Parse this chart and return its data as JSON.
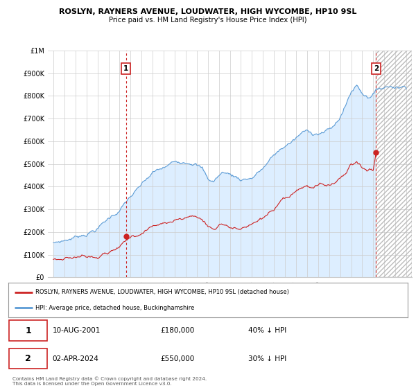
{
  "title": "ROSLYN, RAYNERS AVENUE, LOUDWATER, HIGH WYCOMBE, HP10 9SL",
  "subtitle": "Price paid vs. HM Land Registry's House Price Index (HPI)",
  "ylim": [
    0,
    1000000
  ],
  "yticks": [
    0,
    100000,
    200000,
    300000,
    400000,
    500000,
    600000,
    700000,
    800000,
    900000,
    1000000
  ],
  "ytick_labels": [
    "£0",
    "£100K",
    "£200K",
    "£300K",
    "£400K",
    "£500K",
    "£600K",
    "£700K",
    "£800K",
    "£900K",
    "£1M"
  ],
  "hpi_color": "#5b9bd5",
  "hpi_fill_color": "#ddeeff",
  "price_color": "#cc2222",
  "sale1_year": 2001.58,
  "sale1_price": 180000,
  "sale2_year": 2024.25,
  "sale2_price": 550000,
  "legend_house_label": "ROSLYN, RAYNERS AVENUE, LOUDWATER, HIGH WYCOMBE, HP10 9SL (detached house)",
  "legend_hpi_label": "HPI: Average price, detached house, Buckinghamshire",
  "annotation1_label": "1",
  "annotation1_date": "10-AUG-2001",
  "annotation1_price": "£180,000",
  "annotation1_hpi": "40% ↓ HPI",
  "annotation2_label": "2",
  "annotation2_date": "02-APR-2024",
  "annotation2_price": "£550,000",
  "annotation2_hpi": "30% ↓ HPI",
  "footer": "Contains HM Land Registry data © Crown copyright and database right 2024.\nThis data is licensed under the Open Government Licence v3.0.",
  "background_color": "#ffffff",
  "hatch_start": 2024.25,
  "hatch_end": 2027.5,
  "xlim_start": 1994.5,
  "xlim_end": 2027.5
}
